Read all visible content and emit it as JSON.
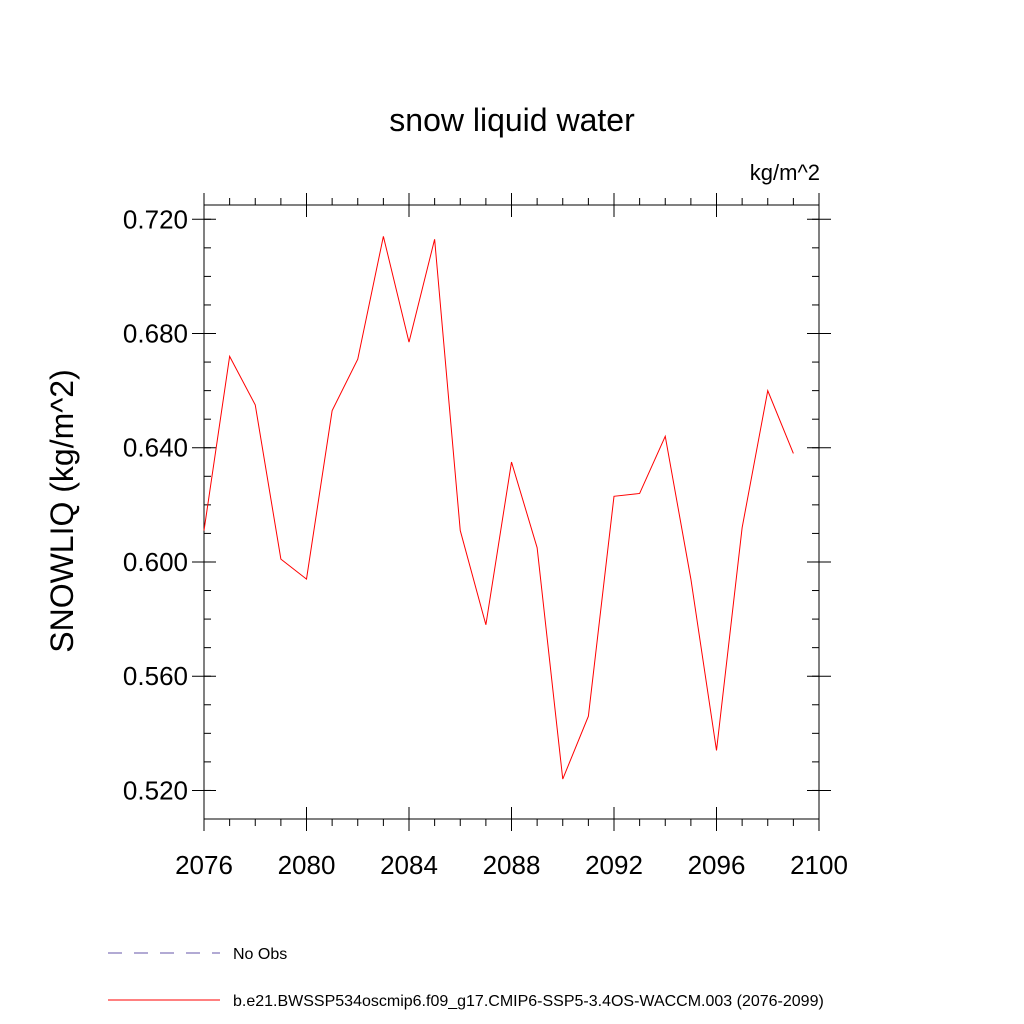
{
  "chart_data": {
    "type": "line",
    "title": "snow liquid water",
    "units": "kg/m^2",
    "ylabel": "SNOWLIQ  (kg/m^2)",
    "xlabel": "",
    "xlim": [
      2076,
      2100
    ],
    "ylim": [
      0.51,
      0.725
    ],
    "x_ticks": [
      2076,
      2080,
      2084,
      2088,
      2092,
      2096,
      2100
    ],
    "x_tick_labels": [
      "2076",
      "2080",
      "2084",
      "2088",
      "2092",
      "2096",
      "2100"
    ],
    "y_ticks": [
      0.52,
      0.56,
      0.6,
      0.64,
      0.68,
      0.72
    ],
    "y_tick_labels": [
      "0.520",
      "0.560",
      "0.600",
      "0.640",
      "0.680",
      "0.720"
    ],
    "grid": false,
    "legend_position": "bottom-left",
    "series": [
      {
        "name": "b.e21.BWSSP534oscmip6.f09_g17.CMIP6-SSP5-3.4OS-WACCM.003 (2076-2099)",
        "color": "#ff0000",
        "style": "solid",
        "x": [
          2076,
          2077,
          2078,
          2079,
          2080,
          2081,
          2082,
          2083,
          2084,
          2085,
          2086,
          2087,
          2088,
          2089,
          2090,
          2091,
          2092,
          2093,
          2094,
          2095,
          2096,
          2097,
          2098,
          2099
        ],
        "values": [
          0.611,
          0.672,
          0.655,
          0.601,
          0.594,
          0.653,
          0.671,
          0.714,
          0.677,
          0.713,
          0.611,
          0.578,
          0.635,
          0.605,
          0.524,
          0.546,
          0.623,
          0.624,
          0.644,
          0.594,
          0.534,
          0.612,
          0.66,
          0.638
        ]
      }
    ],
    "legend": [
      {
        "label": "No Obs",
        "color": "#6655aa",
        "style": "dashed"
      },
      {
        "label": "b.e21.BWSSP534oscmip6.f09_g17.CMIP6-SSP5-3.4OS-WACCM.003 (2076-2099)",
        "color": "#ff0000",
        "style": "solid"
      }
    ]
  }
}
